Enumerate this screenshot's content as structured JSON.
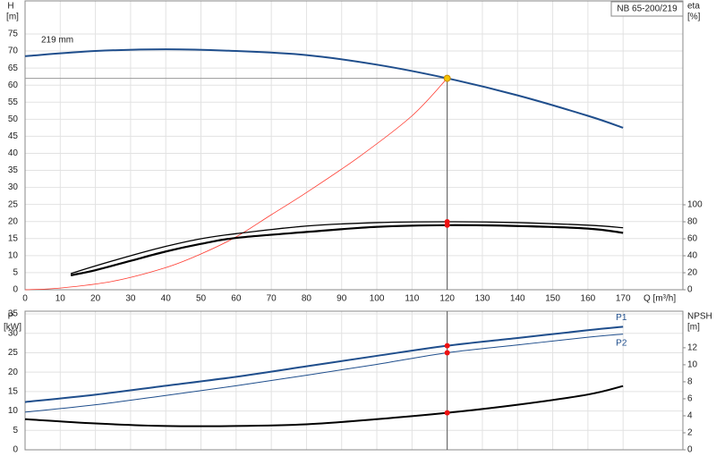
{
  "chart_data": [
    {
      "type": "line",
      "y_label": "H",
      "y_unit": "[m]",
      "y2_label": "eta",
      "y2_unit": "[%]",
      "model": "NB 65-200/219",
      "x_label": "Q [m³/h]",
      "xlim": [
        0,
        187
      ],
      "xticks": [
        0,
        10,
        20,
        30,
        40,
        50,
        60,
        70,
        80,
        90,
        100,
        110,
        120,
        130,
        140,
        150,
        160,
        170
      ],
      "ylim": [
        0,
        84.7
      ],
      "yticks": [
        0,
        5,
        10,
        15,
        20,
        25,
        30,
        35,
        40,
        45,
        50,
        55,
        60,
        65,
        70,
        75
      ],
      "y2lim": [
        0,
        340
      ],
      "y2ticks": [
        0,
        20,
        40,
        60,
        80,
        100
      ],
      "grid": true,
      "duty_point": {
        "x": 120,
        "y": 62,
        "color": "#f5c400"
      },
      "series": [
        {
          "name": "219 mm",
          "color": "#1f4e8c",
          "width": 2,
          "x": [
            0,
            20,
            40,
            60,
            80,
            100,
            120,
            140,
            160,
            170
          ],
          "values": [
            68.5,
            70,
            70.5,
            70,
            68.8,
            66,
            62,
            57,
            51,
            47.5
          ]
        },
        {
          "color": "#ff3b30",
          "width": 0.8,
          "x": [
            0,
            10,
            25,
            40,
            50,
            60,
            70,
            80,
            95,
            110,
            120
          ],
          "values": [
            0,
            0.5,
            2.5,
            6.5,
            10.5,
            15.5,
            22,
            28.5,
            39,
            51,
            62
          ]
        },
        {
          "color": "#000000",
          "width": 1.3,
          "axis": "y2",
          "x": [
            13,
            20,
            30,
            40,
            50,
            60,
            80,
            100,
            120,
            140,
            160,
            170
          ],
          "values": [
            19,
            28,
            40,
            51,
            60,
            66,
            75,
            79,
            80,
            79,
            76,
            73
          ],
          "marker": {
            "x": 120,
            "y": 80,
            "color": "#ee1111"
          }
        },
        {
          "color": "#000000",
          "width": 2.2,
          "axis": "y2",
          "x": [
            13,
            20,
            30,
            40,
            50,
            60,
            80,
            100,
            120,
            140,
            160,
            170
          ],
          "values": [
            17,
            23,
            34,
            45,
            54,
            61,
            68,
            74,
            76,
            75,
            72,
            67
          ],
          "marker": {
            "x": 120,
            "y": 76,
            "color": "#ee1111"
          }
        }
      ]
    },
    {
      "type": "line",
      "y_label": "P",
      "y_unit": "[kW]",
      "y2_label": "NPSH",
      "y2_unit": "[m]",
      "xlim": [
        0,
        187
      ],
      "xgrid": [
        0,
        10,
        20,
        30,
        40,
        50,
        60,
        70,
        80,
        90,
        100,
        110,
        120,
        130,
        140,
        150,
        160,
        170
      ],
      "ylim": [
        0,
        35.7
      ],
      "yticks": [
        0,
        5,
        10,
        15,
        20,
        25,
        30,
        35
      ],
      "y2lim": [
        0,
        16.3
      ],
      "y2ticks": [
        0,
        2,
        4,
        6,
        8,
        10,
        12
      ],
      "grid": true,
      "duty_point": {
        "x": 120
      },
      "series": [
        {
          "name": "P1",
          "color": "#1f4e8c",
          "width": 2,
          "x": [
            0,
            20,
            40,
            60,
            80,
            100,
            120,
            140,
            160,
            170
          ],
          "values": [
            12.3,
            14.2,
            16.5,
            18.8,
            21.5,
            24.2,
            26.8,
            28.8,
            30.8,
            31.7
          ],
          "marker": {
            "x": 120,
            "y": 26.8,
            "color": "#ee1111"
          }
        },
        {
          "name": "P2",
          "color": "#1f4e8c",
          "width": 1,
          "x": [
            0,
            20,
            40,
            60,
            80,
            100,
            120,
            140,
            160,
            170
          ],
          "values": [
            9.7,
            11.6,
            14,
            16.5,
            19.2,
            22,
            25,
            27,
            29,
            29.8
          ],
          "marker": {
            "x": 120,
            "y": 25,
            "color": "#ee1111"
          }
        },
        {
          "color": "#000000",
          "width": 2,
          "axis": "y2",
          "x": [
            0,
            20,
            40,
            60,
            80,
            100,
            120,
            140,
            160,
            170
          ],
          "values": [
            3.6,
            3.1,
            2.8,
            2.8,
            3.0,
            3.6,
            4.35,
            5.3,
            6.5,
            7.5
          ],
          "marker": {
            "x": 120,
            "y": 4.35,
            "color": "#ee1111"
          }
        }
      ]
    }
  ]
}
